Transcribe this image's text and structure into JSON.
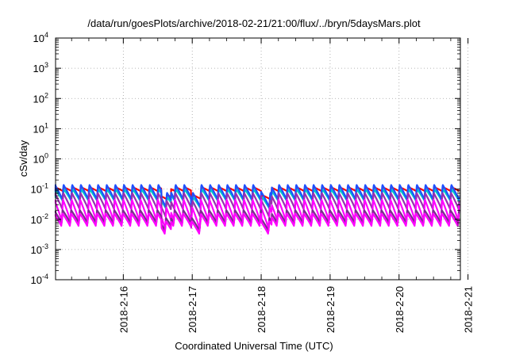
{
  "chart_data": {
    "type": "line",
    "title": "/data/run/goesPlots/archive/2018-02-21/21:00/flux/../bryn/5daysMars.plot",
    "xlabel": "Coordinated Universal Time (UTC)",
    "ylabel": "cSv/day",
    "yscale": "log",
    "ylim": [
      0.0001,
      10000
    ],
    "y_ticks": [
      {
        "value": 0.0001,
        "base": "10",
        "exp": "-4"
      },
      {
        "value": 0.001,
        "base": "10",
        "exp": "-3"
      },
      {
        "value": 0.01,
        "base": "10",
        "exp": "-2"
      },
      {
        "value": 0.1,
        "base": "10",
        "exp": "-1"
      },
      {
        "value": 1,
        "base": "10",
        "exp": "0"
      },
      {
        "value": 10,
        "base": "10",
        "exp": "1"
      },
      {
        "value": 100,
        "base": "10",
        "exp": "2"
      },
      {
        "value": 1000,
        "base": "10",
        "exp": "3"
      },
      {
        "value": 10000,
        "base": "10",
        "exp": "4"
      }
    ],
    "x_tick_labels": [
      "2018-2-16",
      "2018-2-17",
      "2018-2-18",
      "2018-2-19",
      "2018-2-20",
      "2018-2-21"
    ],
    "xlim_days": [
      0,
      5.87
    ],
    "grid": true,
    "legend": "none",
    "pattern": {
      "cycles_per_day": 8,
      "dips": [
        1.62,
        2.05,
        3.07,
        3.08
      ],
      "dip_factor": 0.55
    },
    "series": [
      {
        "color": "#ff0000",
        "values": {
          "top": 0.115,
          "bottom": 0.085
        }
      },
      {
        "color": "#00c8c8",
        "values": {
          "top": 0.1,
          "bottom": 0.04
        }
      },
      {
        "color": "#1e50ff",
        "values": {
          "top": 0.14,
          "bottom": 0.045
        }
      },
      {
        "color": "#9a2fb0",
        "values": {
          "top": 0.075,
          "bottom": 0.022
        }
      },
      {
        "color": "#ff00ff",
        "values": {
          "top": 0.045,
          "bottom": 0.0085
        }
      },
      {
        "color": "#7a2d8e",
        "values": {
          "top": 0.02,
          "bottom": 0.0075
        }
      },
      {
        "color": "#ff00ff",
        "values": {
          "top": 0.016,
          "bottom": 0.006
        }
      }
    ]
  }
}
